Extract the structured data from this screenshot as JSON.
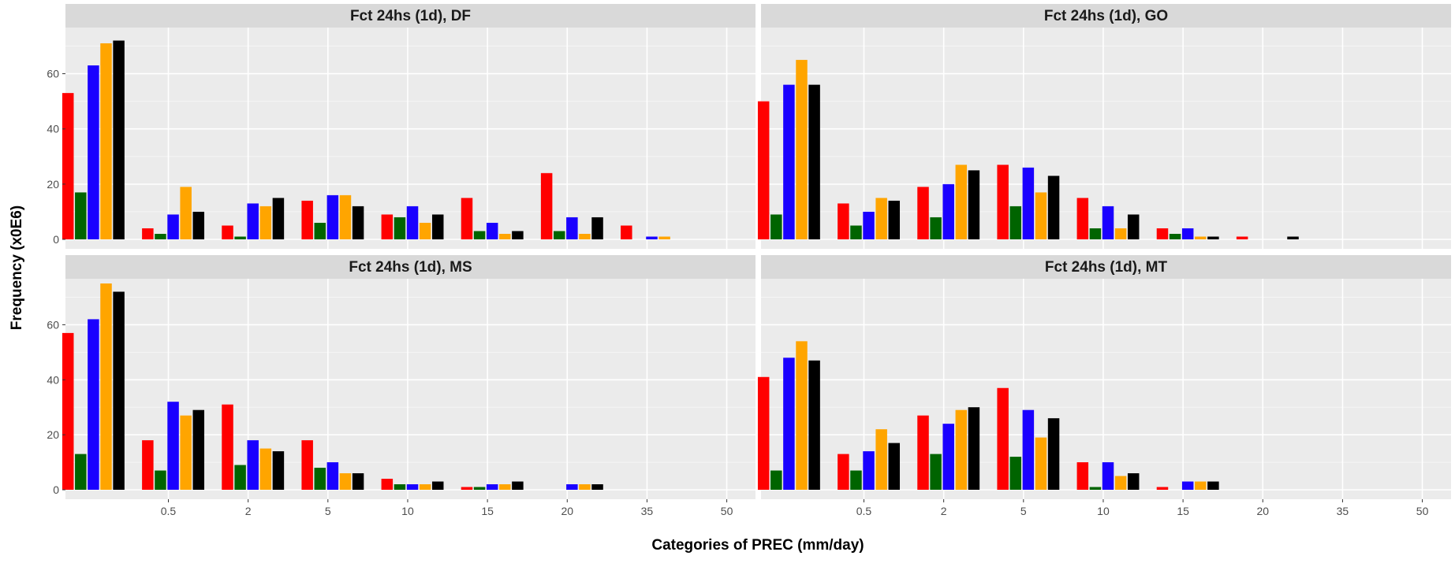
{
  "chart_data": {
    "type": "bar",
    "ylabel": "Frequency (x0E6)",
    "xlabel": "Categories of PREC (mm/day)",
    "x_tick_labels": [
      "0.5",
      "2",
      "5",
      "10",
      "15",
      "20",
      "35",
      "50"
    ],
    "y_ticks": [
      0,
      20,
      40,
      60
    ],
    "ylim": [
      0,
      75
    ],
    "grid": true,
    "legend": "none",
    "series_colors": [
      "#ff0000",
      "#006400",
      "#1a00ff",
      "#ffa500",
      "#000000"
    ],
    "panels": [
      {
        "title": "Fct 24hs (1d), DF",
        "groups": [
          [
            53,
            17,
            63,
            71,
            72
          ],
          [
            4,
            2,
            9,
            19,
            10
          ],
          [
            5,
            1,
            13,
            12,
            15
          ],
          [
            14,
            6,
            16,
            16,
            12
          ],
          [
            9,
            8,
            12,
            6,
            9
          ],
          [
            15,
            3,
            6,
            2,
            3
          ],
          [
            24,
            3,
            8,
            2,
            8
          ],
          [
            5,
            0,
            1,
            1,
            0
          ]
        ]
      },
      {
        "title": "Fct 24hs (1d), GO",
        "groups": [
          [
            50,
            9,
            56,
            65,
            56
          ],
          [
            13,
            5,
            10,
            15,
            14
          ],
          [
            19,
            8,
            20,
            27,
            25
          ],
          [
            27,
            12,
            26,
            17,
            23
          ],
          [
            15,
            4,
            12,
            4,
            9
          ],
          [
            4,
            2,
            4,
            1,
            1
          ],
          [
            1,
            0,
            0,
            0,
            1
          ],
          [
            0,
            0,
            0,
            0,
            0
          ]
        ]
      },
      {
        "title": "Fct 24hs (1d), MS",
        "groups": [
          [
            57,
            13,
            62,
            75,
            72
          ],
          [
            18,
            7,
            32,
            27,
            29
          ],
          [
            31,
            9,
            18,
            15,
            14
          ],
          [
            18,
            8,
            10,
            6,
            6
          ],
          [
            4,
            2,
            2,
            2,
            3
          ],
          [
            1,
            1,
            2,
            2,
            3
          ],
          [
            0,
            0,
            2,
            2,
            2
          ],
          [
            0,
            0,
            0,
            0,
            0
          ]
        ]
      },
      {
        "title": "Fct 24hs (1d), MT",
        "groups": [
          [
            41,
            7,
            48,
            54,
            47
          ],
          [
            13,
            7,
            14,
            22,
            17
          ],
          [
            27,
            13,
            24,
            29,
            30
          ],
          [
            37,
            12,
            29,
            19,
            26
          ],
          [
            10,
            1,
            10,
            5,
            6
          ],
          [
            1,
            0,
            3,
            3,
            3
          ],
          [
            0,
            0,
            0,
            0,
            0
          ],
          [
            0,
            0,
            0,
            0,
            0
          ]
        ]
      }
    ]
  }
}
